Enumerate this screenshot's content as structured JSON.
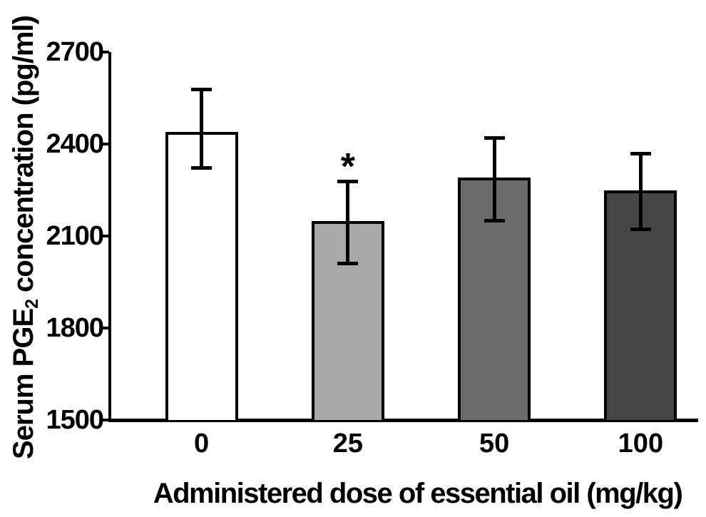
{
  "figure": {
    "background": "#ffffff",
    "axis_color": "#000000",
    "text_color": "#000000"
  },
  "chart_data": {
    "type": "bar",
    "title": "",
    "xlabel": "Administered dose of essential oil (mg/kg)",
    "ylabel_pre": "Serum PGE",
    "ylabel_sub": "2",
    "ylabel_post": " concentration (pg/ml)",
    "ylim": [
      1500,
      2700
    ],
    "yticks": [
      "2700",
      "2400",
      "2100",
      "1800",
      "1500"
    ],
    "ytick_values": [
      2700,
      2400,
      2100,
      1800,
      1500
    ],
    "grid": false,
    "legend": "none",
    "categories": [
      "0",
      "25",
      "50",
      "100"
    ],
    "bars": [
      {
        "category": "0",
        "value": 2440,
        "error_low": 2320,
        "error_high": 2580,
        "fill": "#ffffff",
        "annotation": ""
      },
      {
        "category": "25",
        "value": 2150,
        "error_low": 2010,
        "error_high": 2280,
        "fill": "#a9a9a9",
        "annotation": "*"
      },
      {
        "category": "50",
        "value": 2290,
        "error_low": 2150,
        "error_high": 2420,
        "fill": "#6b6b6b",
        "annotation": ""
      },
      {
        "category": "100",
        "value": 2250,
        "error_low": 2120,
        "error_high": 2370,
        "fill": "#454545",
        "annotation": ""
      }
    ],
    "bar_border_color": "#000000",
    "error_bar_color": "#000000"
  }
}
